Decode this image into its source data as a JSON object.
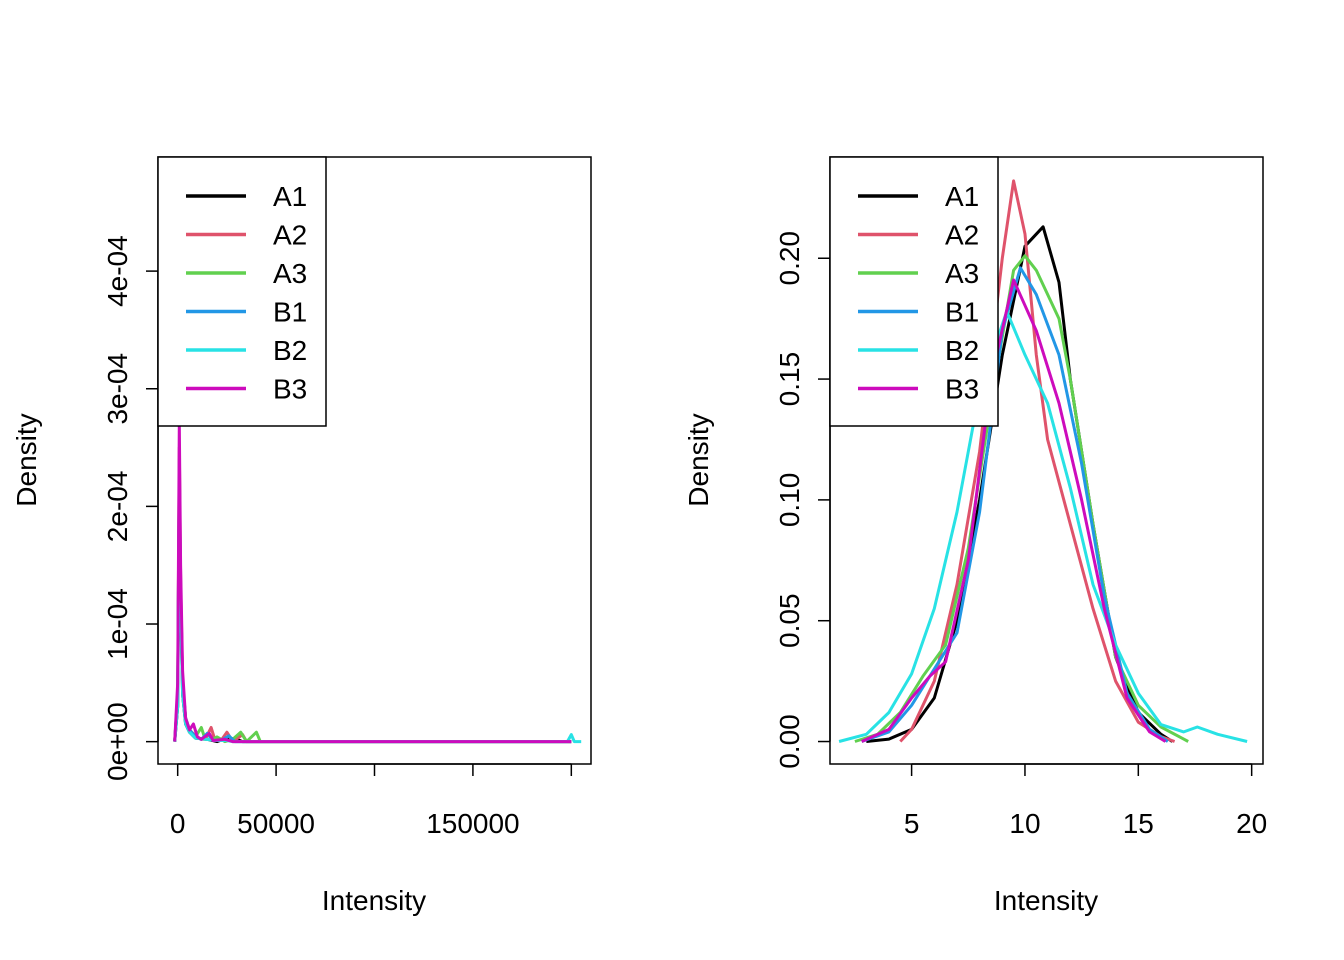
{
  "colors": {
    "A1": "#000000",
    "A2": "#DF536B",
    "A3": "#61D04F",
    "B1": "#2297E6",
    "B2": "#28E2E5",
    "B3": "#CD0BBC"
  },
  "chart_data": [
    {
      "type": "line",
      "title": "",
      "xlabel": "Intensity",
      "ylabel": "Density",
      "xlim": [
        -10000,
        210000
      ],
      "ylim": [
        -1.9e-05,
        0.000497
      ],
      "xticks": [
        0,
        50000,
        100000,
        150000,
        200000
      ],
      "xtick_labels": [
        "0",
        "50000",
        "",
        "150000",
        ""
      ],
      "yticks": [
        0,
        0.0001,
        0.0002,
        0.0003,
        0.0004
      ],
      "ytick_labels": [
        "0e+00",
        "1e-04",
        "2e-04",
        "3e-04",
        "4e-04"
      ],
      "legend_position": "top-left",
      "grid": false,
      "series": [
        {
          "name": "A1",
          "points": [
            [
              -1500,
              0
            ],
            [
              0,
              3e-05
            ],
            [
              800,
              0.00022
            ],
            [
              1500,
              0.00012
            ],
            [
              2500,
              4e-05
            ],
            [
              4000,
              1.5e-05
            ],
            [
              6000,
              8e-06
            ],
            [
              9000,
              3e-06
            ],
            [
              15000,
              2e-06
            ],
            [
              20000,
              0
            ],
            [
              25000,
              3e-06
            ],
            [
              30000,
              2e-06
            ],
            [
              33000,
              0
            ],
            [
              200000,
              0
            ]
          ]
        },
        {
          "name": "A2",
          "points": [
            [
              -1500,
              0
            ],
            [
              0,
              4e-05
            ],
            [
              800,
              0.00025
            ],
            [
              1500,
              0.00014
            ],
            [
              2500,
              5e-05
            ],
            [
              4000,
              2e-05
            ],
            [
              6000,
              1e-05
            ],
            [
              9000,
              5e-06
            ],
            [
              12000,
              2e-06
            ],
            [
              14000,
              2e-06
            ],
            [
              17000,
              1.2e-05
            ],
            [
              19000,
              1e-06
            ],
            [
              22000,
              1e-06
            ],
            [
              25000,
              8e-06
            ],
            [
              28000,
              0
            ],
            [
              33000,
              6e-06
            ],
            [
              35000,
              0
            ],
            [
              200000,
              0
            ]
          ]
        },
        {
          "name": "A3",
          "points": [
            [
              -1500,
              0
            ],
            [
              0,
              4e-05
            ],
            [
              800,
              0.00024
            ],
            [
              1500,
              0.00013
            ],
            [
              2500,
              5e-05
            ],
            [
              4000,
              2e-05
            ],
            [
              6000,
              1e-05
            ],
            [
              9000,
              4e-06
            ],
            [
              12000,
              1.2e-05
            ],
            [
              14000,
              2e-06
            ],
            [
              18000,
              2e-06
            ],
            [
              20000,
              4e-06
            ],
            [
              24000,
              0
            ],
            [
              28000,
              2e-06
            ],
            [
              32000,
              8e-06
            ],
            [
              35000,
              0
            ],
            [
              40000,
              8e-06
            ],
            [
              42000,
              0
            ],
            [
              200000,
              0
            ]
          ]
        },
        {
          "name": "B1",
          "points": [
            [
              -1500,
              0
            ],
            [
              0,
              4e-05
            ],
            [
              800,
              0.00023
            ],
            [
              1500,
              0.00013
            ],
            [
              2500,
              5e-05
            ],
            [
              4000,
              2e-05
            ],
            [
              6000,
              1e-05
            ],
            [
              9000,
              4e-06
            ],
            [
              12000,
              2e-06
            ],
            [
              15000,
              7e-06
            ],
            [
              18000,
              1e-06
            ],
            [
              22000,
              1e-06
            ],
            [
              26000,
              5e-06
            ],
            [
              29000,
              0
            ],
            [
              200000,
              0
            ]
          ]
        },
        {
          "name": "B2",
          "points": [
            [
              -1500,
              0
            ],
            [
              0,
              3e-05
            ],
            [
              800,
              0.00021
            ],
            [
              1500,
              0.00012
            ],
            [
              2500,
              4e-05
            ],
            [
              4000,
              1.5e-05
            ],
            [
              6000,
              8e-06
            ],
            [
              9000,
              3e-06
            ],
            [
              14000,
              2e-06
            ],
            [
              20000,
              1e-06
            ],
            [
              25000,
              1e-06
            ],
            [
              28000,
              0
            ],
            [
              198000,
              0
            ],
            [
              200000,
              6e-06
            ],
            [
              201500,
              0
            ],
            [
              205000,
              0
            ]
          ]
        },
        {
          "name": "B3",
          "points": [
            [
              -1500,
              0
            ],
            [
              0,
              5e-05
            ],
            [
              800,
              0.00027
            ],
            [
              1500,
              0.00015
            ],
            [
              2500,
              6e-05
            ],
            [
              4000,
              2e-05
            ],
            [
              6000,
              1e-05
            ],
            [
              8000,
              1.5e-05
            ],
            [
              10000,
              4e-06
            ],
            [
              12000,
              2e-06
            ],
            [
              16000,
              7e-06
            ],
            [
              18000,
              1e-06
            ],
            [
              24000,
              2e-06
            ],
            [
              28000,
              0
            ],
            [
              200000,
              0
            ]
          ]
        }
      ]
    },
    {
      "type": "line",
      "title": "",
      "xlabel": "Intensity",
      "ylabel": "Density",
      "xlim": [
        1.4,
        20.5
      ],
      "ylim": [
        -0.0093,
        0.2419
      ],
      "xticks": [
        5,
        10,
        15,
        20
      ],
      "xtick_labels": [
        "5",
        "10",
        "15",
        "20"
      ],
      "yticks": [
        0,
        0.05,
        0.1,
        0.15,
        0.2
      ],
      "ytick_labels": [
        "0.00",
        "0.05",
        "0.10",
        "0.15",
        "0.20"
      ],
      "legend_position": "top-left",
      "grid": false,
      "series": [
        {
          "name": "A1",
          "points": [
            [
              3,
              0
            ],
            [
              4,
              0.001
            ],
            [
              5,
              0.005
            ],
            [
              6,
              0.018
            ],
            [
              7,
              0.05
            ],
            [
              8,
              0.1
            ],
            [
              9,
              0.16
            ],
            [
              10,
              0.205
            ],
            [
              10.8,
              0.213
            ],
            [
              11.5,
              0.19
            ],
            [
              12,
              0.15
            ],
            [
              13,
              0.09
            ],
            [
              14,
              0.035
            ],
            [
              15,
              0.012
            ],
            [
              16,
              0.003
            ],
            [
              16.5,
              0
            ]
          ]
        },
        {
          "name": "A2",
          "points": [
            [
              4.5,
              0
            ],
            [
              5,
              0.005
            ],
            [
              6,
              0.025
            ],
            [
              7,
              0.065
            ],
            [
              8,
              0.12
            ],
            [
              8.5,
              0.16
            ],
            [
              9,
              0.2
            ],
            [
              9.5,
              0.232
            ],
            [
              10,
              0.21
            ],
            [
              10.5,
              0.16
            ],
            [
              11,
              0.125
            ],
            [
              12,
              0.09
            ],
            [
              13,
              0.055
            ],
            [
              14,
              0.025
            ],
            [
              15,
              0.008
            ],
            [
              16,
              0.002
            ],
            [
              16.6,
              0
            ]
          ]
        },
        {
          "name": "A3",
          "points": [
            [
              2.5,
              0
            ],
            [
              3.5,
              0.003
            ],
            [
              4.5,
              0.012
            ],
            [
              5.5,
              0.027
            ],
            [
              6.5,
              0.04
            ],
            [
              7.5,
              0.08
            ],
            [
              8.5,
              0.14
            ],
            [
              9.5,
              0.195
            ],
            [
              10,
              0.201
            ],
            [
              10.5,
              0.195
            ],
            [
              11.5,
              0.175
            ],
            [
              12,
              0.15
            ],
            [
              13,
              0.09
            ],
            [
              14,
              0.035
            ],
            [
              15,
              0.015
            ],
            [
              16,
              0.006
            ],
            [
              17,
              0.001
            ],
            [
              17.2,
              0
            ]
          ]
        },
        {
          "name": "B1",
          "points": [
            [
              2.8,
              0
            ],
            [
              4,
              0.004
            ],
            [
              5,
              0.015
            ],
            [
              6,
              0.03
            ],
            [
              7,
              0.045
            ],
            [
              8,
              0.095
            ],
            [
              9,
              0.17
            ],
            [
              9.8,
              0.196
            ],
            [
              10.5,
              0.185
            ],
            [
              11.5,
              0.16
            ],
            [
              12.5,
              0.115
            ],
            [
              13.5,
              0.06
            ],
            [
              14.5,
              0.02
            ],
            [
              15.5,
              0.005
            ],
            [
              16.3,
              0
            ]
          ]
        },
        {
          "name": "B2",
          "points": [
            [
              1.8,
              0
            ],
            [
              3,
              0.003
            ],
            [
              4,
              0.012
            ],
            [
              5,
              0.028
            ],
            [
              6,
              0.055
            ],
            [
              7,
              0.095
            ],
            [
              8,
              0.145
            ],
            [
              9.2,
              0.178
            ],
            [
              10,
              0.16
            ],
            [
              11,
              0.14
            ],
            [
              12,
              0.105
            ],
            [
              13,
              0.065
            ],
            [
              14,
              0.04
            ],
            [
              15,
              0.02
            ],
            [
              16,
              0.007
            ],
            [
              17,
              0.004
            ],
            [
              17.6,
              0.006
            ],
            [
              18.5,
              0.003
            ],
            [
              19.8,
              0
            ]
          ]
        },
        {
          "name": "B3",
          "points": [
            [
              2.8,
              0
            ],
            [
              4,
              0.005
            ],
            [
              5,
              0.018
            ],
            [
              5.8,
              0.027
            ],
            [
              6.5,
              0.033
            ],
            [
              7.5,
              0.075
            ],
            [
              8.5,
              0.15
            ],
            [
              9.5,
              0.191
            ],
            [
              10.5,
              0.17
            ],
            [
              11.5,
              0.14
            ],
            [
              12.5,
              0.1
            ],
            [
              13.5,
              0.055
            ],
            [
              14.5,
              0.018
            ],
            [
              15.5,
              0.004
            ],
            [
              16.2,
              0
            ]
          ]
        }
      ]
    }
  ]
}
